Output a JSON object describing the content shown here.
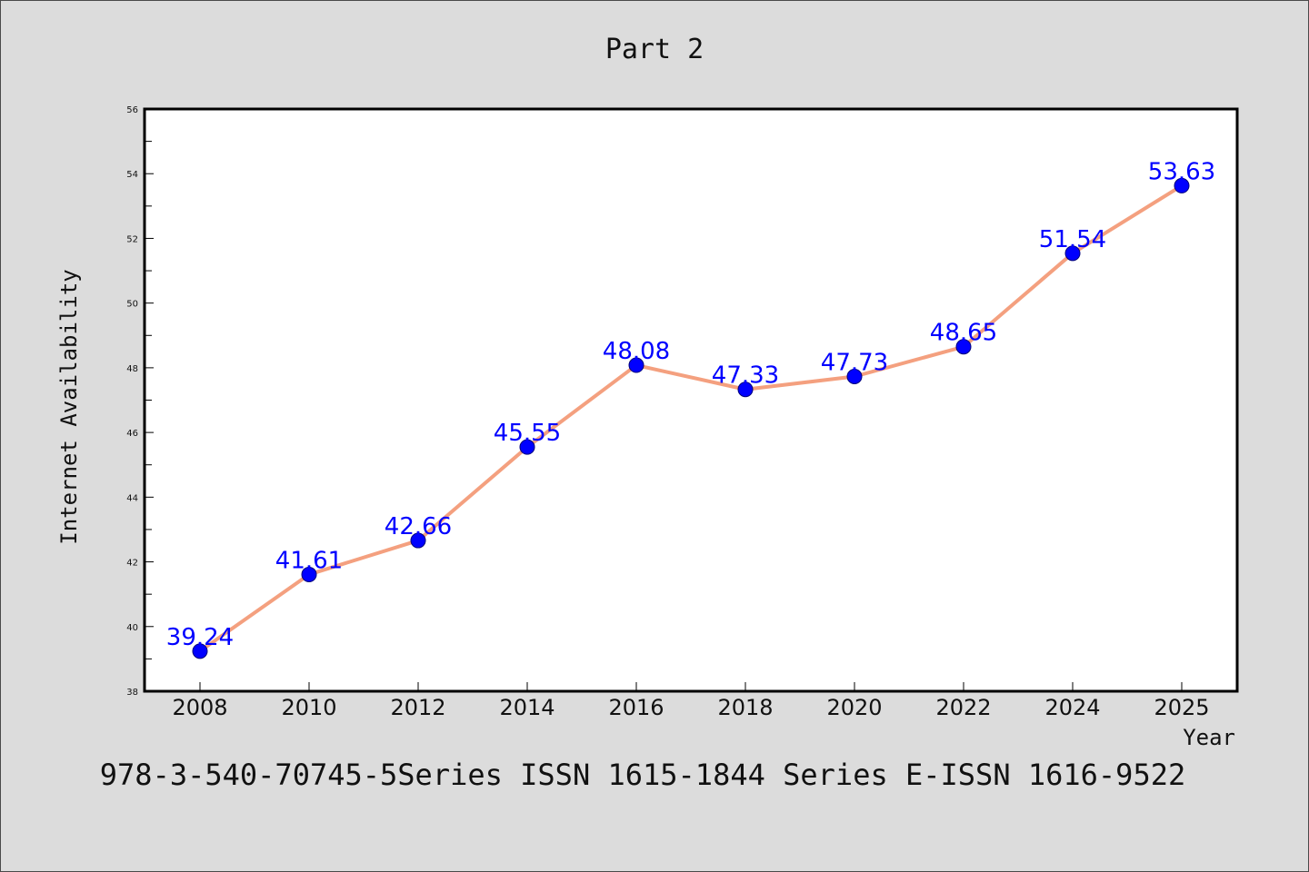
{
  "chart_data": {
    "type": "line",
    "title": "Part 2",
    "xlabel": "Year",
    "ylabel": "Internet Availability",
    "ylim": [
      38,
      56
    ],
    "y_ticks": [
      38,
      40,
      42,
      44,
      46,
      48,
      50,
      52,
      54,
      56
    ],
    "categories": [
      "2008",
      "2010",
      "2012",
      "2014",
      "2016",
      "2018",
      "2020",
      "2022",
      "2024",
      "2025"
    ],
    "values": [
      39.24,
      41.61,
      42.66,
      45.55,
      48.08,
      47.33,
      47.73,
      48.65,
      51.54,
      53.63
    ],
    "data_labels": [
      "39.24",
      "41.61",
      "42.66",
      "45.55",
      "48.08",
      "47.33",
      "47.73",
      "48.65",
      "51.54",
      "53.63"
    ],
    "grid": false,
    "line_color": "#f4a07f",
    "marker_color": "#0000ff",
    "label_color": "#0000ff"
  },
  "caption": "978-3-540-70745-5Series ISSN 1615-1844 Series E-ISSN 1616-9522"
}
